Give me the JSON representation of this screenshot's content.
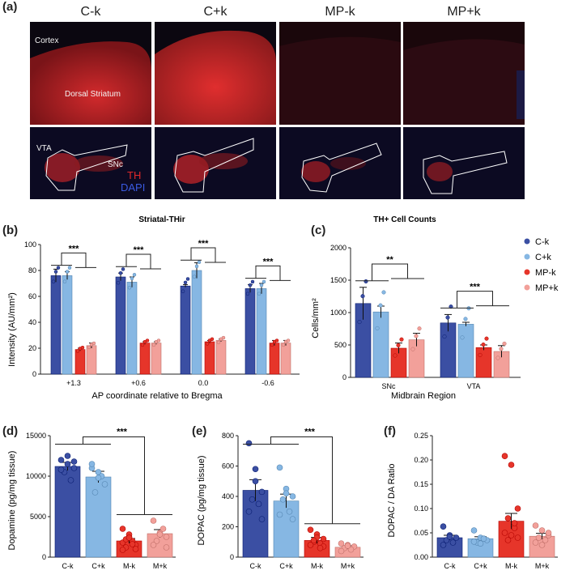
{
  "panel_letters": [
    "(a)",
    "(b)",
    "(c)",
    "(d)",
    "(e)",
    "(f)"
  ],
  "micrographs": {
    "columns": [
      "C-k",
      "C+k",
      "MP-k",
      "MP+k"
    ],
    "striatum_labels": {
      "cortex": "Cortex",
      "striatum": "Dorsal Striatum"
    },
    "midbrain_labels": {
      "vta": "VTA",
      "snc": "SNc"
    },
    "stain_legend": {
      "th": "TH",
      "dapi": "DAPI"
    },
    "colors": {
      "th": "#e0282a",
      "dapi": "#3050d0",
      "outline": "#ffffff",
      "background": "#0b0710"
    }
  },
  "palette": {
    "C-k": "#3b4fa3",
    "C+k": "#86b7e3",
    "MP-k": "#e6352a",
    "MP+k": "#f2a09a",
    "axis": "#222222"
  },
  "chart_data": [
    {
      "id": "b",
      "type": "bar",
      "title": "Striatal-THir",
      "xlabel": "AP coordinate relative to Bregma",
      "ylabel": "Intensity (AU/mm²)",
      "ylim": [
        0,
        100
      ],
      "yticks": [
        "0",
        "20",
        "40",
        "60",
        "80",
        "100"
      ],
      "categories": [
        "+1.3",
        "+0.6",
        "0.0",
        "-0.6"
      ],
      "series": [
        {
          "values": [
            76,
            75,
            68,
            66
          ],
          "errors": [
            5,
            3,
            1,
            3
          ]
        },
        {
          "values": [
            76,
            71,
            80,
            66
          ],
          "errors": [
            3,
            4,
            6,
            4
          ]
        },
        {
          "values": [
            19,
            24,
            25,
            24
          ],
          "errors": [
            1,
            1,
            1,
            2
          ]
        },
        {
          "values": [
            22,
            24,
            26,
            24
          ],
          "errors": [
            2,
            1,
            1,
            2
          ]
        }
      ],
      "significance": [
        "***",
        "***",
        "***",
        "***"
      ]
    },
    {
      "id": "c",
      "type": "bar",
      "title": "TH+ Cell Counts",
      "xlabel": "Midbrain Region",
      "ylabel": "Cells/mm²",
      "ylim": [
        0,
        2000
      ],
      "yticks": [
        "0",
        "500",
        "1000",
        "1500",
        "2000"
      ],
      "categories": [
        "SNc",
        "VTA"
      ],
      "series": [
        {
          "name": "C-k",
          "values": [
            1140,
            840
          ],
          "errors": [
            250,
            130
          ]
        },
        {
          "name": "C+k",
          "values": [
            1010,
            820
          ],
          "errors": [
            90,
            30
          ]
        },
        {
          "name": "MP-k",
          "values": [
            450,
            460
          ],
          "errors": [
            80,
            40
          ]
        },
        {
          "name": "MP+k",
          "values": [
            580,
            400
          ],
          "errors": [
            100,
            90
          ]
        }
      ],
      "significance": [
        "**",
        "***"
      ],
      "legend": "top-right"
    },
    {
      "id": "d",
      "type": "bar",
      "ylabel": "Dopamine (pg/mg tissue)",
      "ylim": [
        0,
        15000
      ],
      "yticks": [
        "0",
        "5000",
        "10000",
        "15000"
      ],
      "categories": [
        "C-k",
        "C+k",
        "M-k",
        "M+k"
      ],
      "values": [
        11200,
        9900,
        2000,
        2900
      ],
      "errors": [
        500,
        700,
        300,
        500
      ],
      "points": [
        [
          12000,
          11500,
          11800,
          10500,
          9500,
          10800,
          12500,
          11000
        ],
        [
          11000,
          10500,
          9000,
          8000,
          10000,
          11500,
          9800
        ],
        [
          3500,
          2500,
          1500,
          1200,
          2000,
          1800,
          2800,
          1000,
          2200,
          1600,
          900,
          2400
        ],
        [
          4500,
          3000,
          2500,
          2000,
          3500,
          1500,
          2800,
          1200
        ]
      ],
      "significance": "***"
    },
    {
      "id": "e",
      "type": "bar",
      "ylabel": "DOPAC (pg/mg tissue)",
      "ylim": [
        0,
        800
      ],
      "yticks": [
        "0",
        "200",
        "400",
        "600",
        "800"
      ],
      "categories": [
        "C-k",
        "C+k",
        "M-k",
        "M+k"
      ],
      "values": [
        440,
        370,
        110,
        65
      ],
      "errors": [
        70,
        45,
        20,
        10
      ],
      "points": [
        [
          750,
          580,
          430,
          380,
          350,
          300,
          500,
          250
        ],
        [
          590,
          450,
          400,
          380,
          300,
          280,
          420,
          250
        ],
        [
          180,
          150,
          120,
          100,
          90,
          80,
          130,
          70,
          110,
          60
        ],
        [
          90,
          80,
          70,
          60,
          50,
          40,
          75
        ]
      ],
      "significance": "***"
    },
    {
      "id": "f",
      "type": "bar",
      "ylabel": "DOPAC / DA Ratio",
      "ylim": [
        0,
        0.25
      ],
      "yticks": [
        "0.00",
        "0.05",
        "0.10",
        "0.15",
        "0.20",
        "0.25"
      ],
      "categories": [
        "C-k",
        "C+k",
        "M-k",
        "M+k"
      ],
      "values": [
        0.04,
        0.038,
        0.074,
        0.043
      ],
      "errors": [
        0.005,
        0.004,
        0.016,
        0.006
      ],
      "points": [
        [
          0.063,
          0.045,
          0.04,
          0.035,
          0.03,
          0.025,
          0.042
        ],
        [
          0.055,
          0.04,
          0.035,
          0.03,
          0.038,
          0.032,
          0.028
        ],
        [
          0.208,
          0.19,
          0.1,
          0.08,
          0.06,
          0.05,
          0.045,
          0.04,
          0.035,
          0.07
        ],
        [
          0.065,
          0.055,
          0.045,
          0.04,
          0.035,
          0.03,
          0.025,
          0.05
        ]
      ]
    }
  ]
}
